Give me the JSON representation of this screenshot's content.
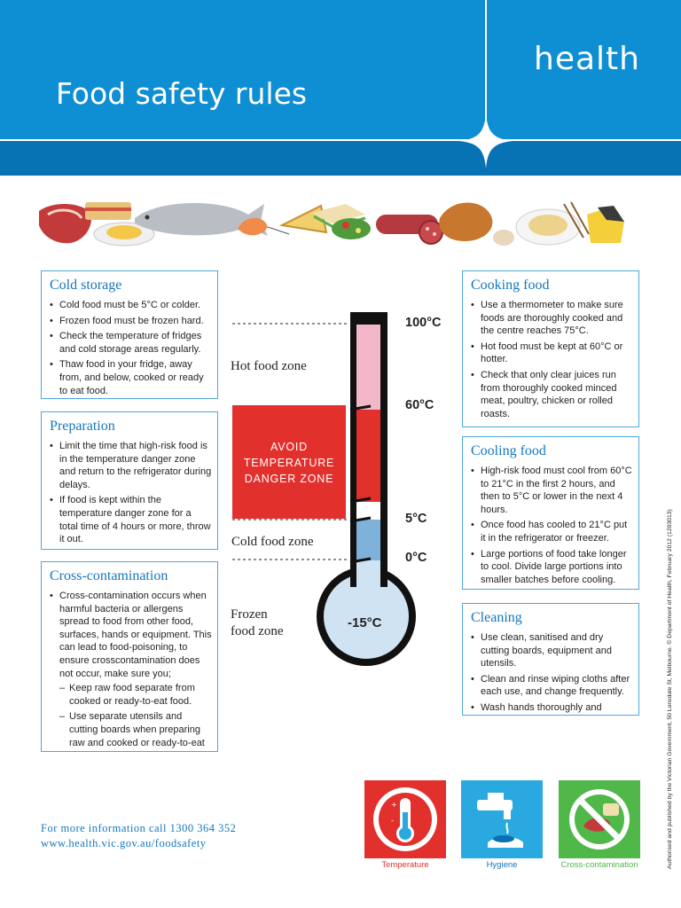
{
  "header": {
    "brand": "health",
    "title": "Food safety rules"
  },
  "boxes": {
    "cold_storage": {
      "title": "Cold storage",
      "items": [
        "Cold food must be 5°C or colder.",
        "Frozen food must be frozen hard.",
        "Check the temperature of fridges and cold storage areas regularly.",
        "Thaw food in your fridge, away from, and below, cooked or ready to eat food."
      ]
    },
    "preparation": {
      "title": "Preparation",
      "items": [
        "Limit the time that high-risk food is in the temperature danger zone and return to the refrigerator during delays.",
        "If food is kept within the temperature danger zone for a total time of 4 hours or more, throw it out."
      ]
    },
    "cross_contamination": {
      "title": "Cross-contamination",
      "items": [
        "Cross-contamination  occurs when harmful bacteria or allergens spread to food from other food, surfaces, hands or equipment. This can lead to food-poisoning, to ensure crosscontamination does not occur, make sure you;"
      ],
      "sub_items": [
        "Keep raw food separate from cooked or ready-to-eat food.",
        "Use separate utensils and cutting boards when preparing raw and cooked or ready-to-eat"
      ]
    },
    "cooking_food": {
      "title": "Cooking food",
      "items": [
        "Use a thermometer to make sure foods are thoroughly cooked and the centre reaches 75°C.",
        "Hot food must be kept at 60°C or hotter.",
        "Check that only clear juices run from thoroughly cooked minced meat, poultry, chicken or rolled roasts."
      ]
    },
    "cooling_food": {
      "title": "Cooling food",
      "items": [
        "High-risk food must cool from 60°C to 21°C in the first 2 hours, and then to 5°C or lower in the next 4 hours.",
        "Once food has cooled to 21°C put it in the refrigerator or freezer.",
        "Large portions of food take longer to cool. Divide large portions into smaller batches before cooling."
      ]
    },
    "cleaning": {
      "title": "Cleaning",
      "items": [
        "Use clean, sanitised and dry cutting boards, equipment and utensils.",
        "Clean and rinse wiping cloths after each use, and change frequently.",
        "Wash hands thoroughly and regularly."
      ]
    }
  },
  "thermometer": {
    "temps": {
      "t100": "100°C",
      "t60": "60°C",
      "t5": "5°C",
      "t0": "0°C",
      "t_minus15": "-15°C"
    },
    "zones": {
      "hot": "Hot food zone",
      "cold": "Cold food zone",
      "frozen_line1": "Frozen",
      "frozen_line2": "food zone"
    },
    "danger_line1": "AVOID",
    "danger_line2": "TEMPERATURE",
    "danger_line3": "DANGER ZONE"
  },
  "footer": {
    "phone": "For more information call 1300 364 352",
    "url": "www.health.vic.gov.au/foodsafety",
    "icons": [
      "Temperature",
      "Hygiene",
      "Cross-contamination"
    ],
    "side_note": "Authorised and published by the Victorian Government, 50 Lonsdale St, Melbourne. © Department of Health, February 2012 (1203013)"
  },
  "colors": {
    "header_blue": "#0e8ed3",
    "header_band": "#0873b4",
    "box_title": "#1477be",
    "danger_red": "#e2302c",
    "hot_pink": "#f2b7c8",
    "cold_blue": "#7fb2da",
    "bulb_blue": "#cfe3f3",
    "hygiene_blue": "#2aa9e0",
    "cross_green": "#4fb848"
  }
}
